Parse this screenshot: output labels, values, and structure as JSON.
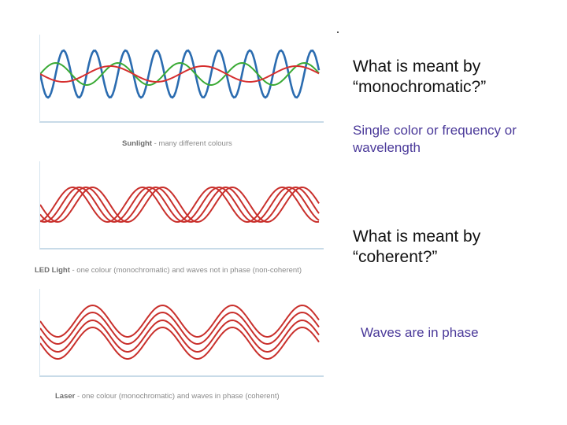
{
  "panels": [
    {
      "caption_bold": "Sunlight",
      "caption_rest": " - many different colours",
      "waves": [
        {
          "color": "#2b6cb0",
          "freq": 9
        },
        {
          "color": "#3aaa35",
          "freq": 4.5
        },
        {
          "color": "#d62f2f",
          "freq": 3
        }
      ]
    },
    {
      "caption_bold": "LED Light",
      "caption_rest": " - one colour (monochromatic) and waves not in phase (non-coherent)",
      "waves": [
        {
          "color": "#c9302c",
          "freq": 4,
          "phase": 0
        },
        {
          "color": "#c9302c",
          "freq": 4,
          "phase": 0.6
        },
        {
          "color": "#c9302c",
          "freq": 4,
          "phase": 1.2
        },
        {
          "color": "#c9302c",
          "freq": 4,
          "phase": 1.8
        }
      ]
    },
    {
      "caption_bold": "Laser",
      "caption_rest": " - one colour (monochromatic) and waves in phase (coherent)",
      "waves": [
        {
          "color": "#c9302c",
          "freq": 4,
          "offset": -14
        },
        {
          "color": "#c9302c",
          "freq": 4,
          "offset": -5
        },
        {
          "color": "#c9302c",
          "freq": 4,
          "offset": 5
        },
        {
          "color": "#c9302c",
          "freq": 4,
          "offset": 14
        }
      ]
    }
  ],
  "q1": {
    "line1": "What is meant by",
    "line2": "“monochromatic?”"
  },
  "a1": {
    "line1": "Single color or frequency or",
    "line2": "wavelength",
    "color": "#4b3a9a"
  },
  "q2": {
    "line1": "What is meant by",
    "line2": "“coherent?”"
  },
  "a2": {
    "text": "Waves are in phase",
    "color": "#4b3a9a"
  }
}
